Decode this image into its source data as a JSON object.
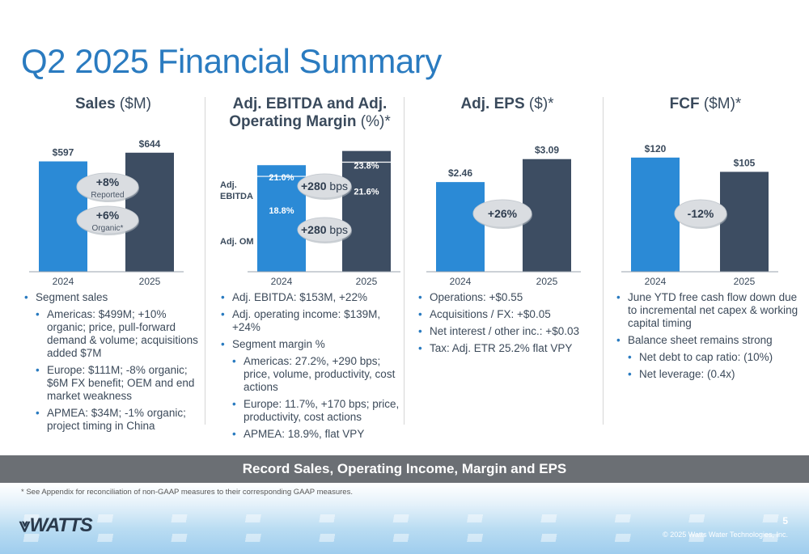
{
  "title": "Q2 2025 Financial Summary",
  "banner": "Record Sales, Operating Income, Margin and EPS",
  "footnote": "* See Appendix for reconciliation of non-GAAP measures to their corresponding GAAP measures.",
  "logo": "WATTS",
  "page_number": "5",
  "copyright": "© 2025 Watts Water Technologies, Inc.",
  "colors": {
    "blue": "#2b8ad6",
    "navy": "#3d4d62",
    "title": "#2a7bc0",
    "bubble": "#dadde1"
  },
  "columns": [
    {
      "head_bold": "Sales",
      "head_unit": " ($M)",
      "bullets": [
        {
          "text": "Segment sales",
          "level": 0
        },
        {
          "text": "Americas: $499M; +10% organic; price, pull-forward demand & volume; acquisitions added $7M",
          "level": 1
        },
        {
          "text": "Europe: $111M; -8% organic; $6M FX benefit; OEM and end market weakness",
          "level": 1
        },
        {
          "text": "APMEA: $34M; -1% organic; project timing in China",
          "level": 1
        }
      ]
    },
    {
      "head_bold": "Adj. EBITDA and Adj. Operating Margin",
      "head_unit": " (%)*",
      "bullets": [
        {
          "text": "Adj. EBITDA: $153M, +22%",
          "level": 0
        },
        {
          "text": "Adj. operating income: $139M, +24%",
          "level": 0
        },
        {
          "text": "Segment margin %",
          "level": 0
        },
        {
          "text": "Americas: 27.2%, +290 bps; price, volume, productivity, cost actions",
          "level": 1
        },
        {
          "text": "Europe: 11.7%, +170 bps;  price, productivity, cost actions",
          "level": 1
        },
        {
          "text": "APMEA: 18.9%, flat VPY",
          "level": 1
        }
      ]
    },
    {
      "head_bold": "Adj. EPS",
      "head_unit": " ($)*",
      "bullets": [
        {
          "text": "Operations: +$0.55",
          "level": 0
        },
        {
          "text": "Acquisitions / FX: +$0.05",
          "level": 0
        },
        {
          "text": "Net interest / other inc.: +$0.03",
          "level": 0
        },
        {
          "text": "Tax: Adj. ETR 25.2% flat VPY",
          "level": 0
        }
      ]
    },
    {
      "head_bold": "FCF",
      "head_unit": " ($M)*",
      "bullets": [
        {
          "text": "June YTD free cash flow down due to incremental net capex & working capital timing",
          "level": 0
        },
        {
          "text": "Balance sheet remains strong",
          "level": 0
        },
        {
          "text": "Net debt to cap ratio: (10%)",
          "level": 1
        },
        {
          "text": "Net leverage: (0.4x)",
          "level": 1
        }
      ]
    }
  ],
  "chart_data": [
    {
      "type": "bar",
      "categories": [
        "2024",
        "2025"
      ],
      "values": [
        597,
        644
      ],
      "value_labels": [
        "$597",
        "$644"
      ],
      "title": "Sales ($M)",
      "annotations": [
        {
          "text": "+8%",
          "sub": "Reported"
        },
        {
          "text": "+6%",
          "sub": "Organic*"
        }
      ]
    },
    {
      "type": "bar",
      "categories": [
        "2024",
        "2025"
      ],
      "series": [
        {
          "name": "Adj. OM",
          "values": [
            18.8,
            21.6
          ],
          "labels": [
            "18.8%",
            "21.6%"
          ]
        },
        {
          "name": "Adj. EBITDA",
          "values": [
            21.0,
            23.8
          ],
          "labels": [
            "21.0%",
            "23.8%"
          ]
        }
      ],
      "title": "Adj. EBITDA and Adj. Operating Margin (%)*",
      "annotations": [
        {
          "text": "+280",
          "sub": "bps"
        },
        {
          "text": "+280",
          "sub": "bps"
        }
      ]
    },
    {
      "type": "bar",
      "categories": [
        "2024",
        "2025"
      ],
      "values": [
        2.46,
        3.09
      ],
      "value_labels": [
        "$2.46",
        "$3.09"
      ],
      "title": "Adj. EPS ($)*",
      "annotations": [
        {
          "text": "+26%"
        }
      ]
    },
    {
      "type": "bar",
      "categories": [
        "2024",
        "2025"
      ],
      "values": [
        120,
        105
      ],
      "value_labels": [
        "$120",
        "$105"
      ],
      "title": "FCF ($M)*",
      "annotations": [
        {
          "text": "-12%"
        }
      ]
    }
  ]
}
